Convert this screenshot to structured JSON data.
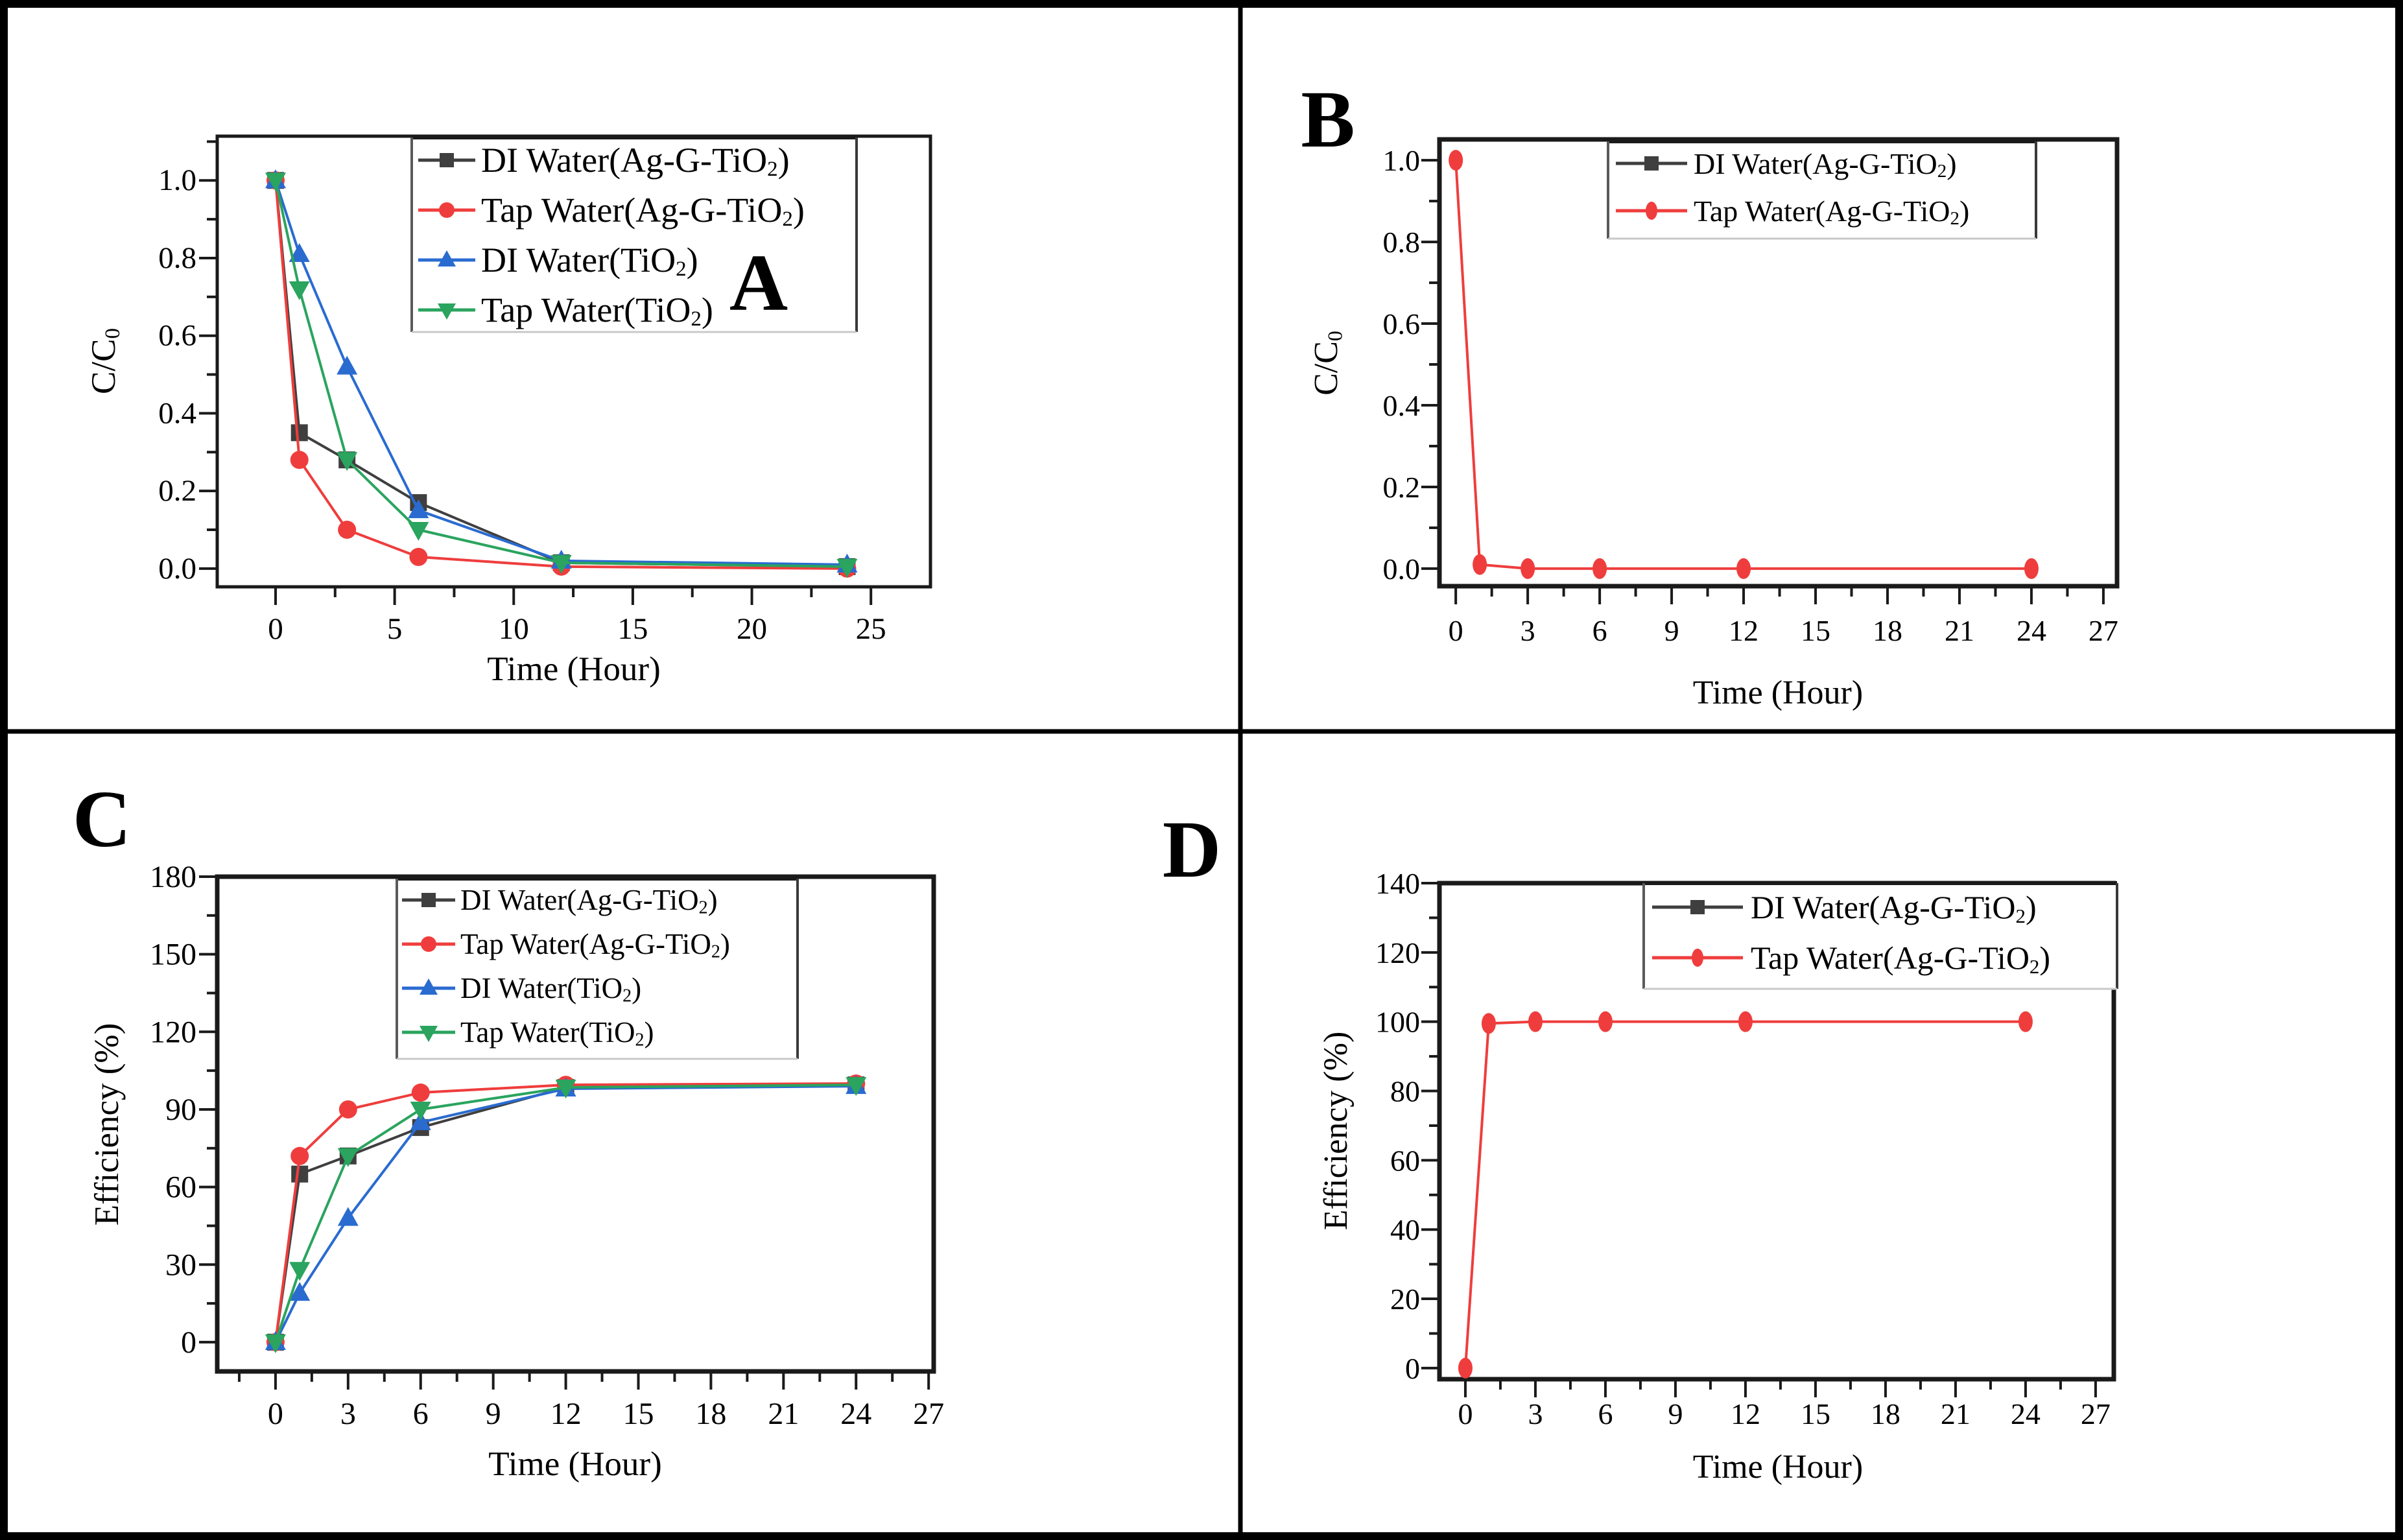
{
  "figure": {
    "background": "#ffffff",
    "outer_border_color": "#000000",
    "divider_color": "#000000",
    "legend_border_color": "#777777",
    "legend_bottom_border_color": "#c8c8c8",
    "axis_color": "#1a1a1a",
    "panel_letters": [
      "A",
      "B",
      "C",
      "D"
    ]
  },
  "chart_data": [
    {
      "panel": "A",
      "panel_letter": "A",
      "type": "line",
      "title": "",
      "xlabel": "Time (Hour)",
      "ylabel": "C/C0",
      "grid": false,
      "x_range": [
        -2.45,
        27.5
      ],
      "y_range": [
        -0.047,
        1.114
      ],
      "x_ticks": [
        0,
        5,
        10,
        15,
        20,
        25
      ],
      "x_tick_labels": [
        "0",
        "5",
        "10",
        "15",
        "20",
        "25"
      ],
      "y_ticks": [
        0.0,
        0.2,
        0.4,
        0.6,
        0.8,
        1.0
      ],
      "y_tick_labels": [
        "0.0",
        "0.2",
        "0.4",
        "0.6",
        "0.8",
        "1.0"
      ],
      "x": [
        0,
        1,
        3,
        6,
        12,
        24
      ],
      "series": [
        {
          "name": "DI Water(Ag-G-TiO2)",
          "color": "#3f3f3f",
          "marker": "square",
          "values": [
            1.0,
            0.35,
            0.28,
            0.17,
            0.015,
            0.005
          ]
        },
        {
          "name": "Tap Water(Ag-G-TiO2)",
          "color": "#ef3d3d",
          "marker": "circle",
          "values": [
            1.0,
            0.28,
            0.1,
            0.03,
            0.005,
            0.0
          ]
        },
        {
          "name": "DI Water(TiO2)",
          "color": "#2a6bd0",
          "marker": "triangle-up",
          "values": [
            1.0,
            0.81,
            0.52,
            0.15,
            0.02,
            0.01
          ]
        },
        {
          "name": "Tap Water(TiO2)",
          "color": "#2aa45e",
          "marker": "triangle-down",
          "values": [
            1.0,
            0.72,
            0.28,
            0.1,
            0.015,
            0.005
          ]
        }
      ],
      "legend": {
        "position": "top-right",
        "entries": [
          {
            "label": "DI Water(Ag-G-TiO2)",
            "color": "#3f3f3f",
            "marker": "square"
          },
          {
            "label": "Tap Water(Ag-G-TiO2)",
            "color": "#ef3d3d",
            "marker": "circle"
          },
          {
            "label": "DI Water(TiO2)",
            "color": "#2a6bd0",
            "marker": "triangle-up"
          },
          {
            "label": "Tap Water(TiO2)",
            "color": "#2aa45e",
            "marker": "triangle-down"
          }
        ]
      }
    },
    {
      "panel": "B",
      "panel_letter": "B",
      "type": "line",
      "title": "",
      "xlabel": "Time (Hour)",
      "ylabel": "C/C0",
      "grid": false,
      "x_range": [
        -0.68,
        27.57
      ],
      "y_range": [
        -0.043,
        1.051
      ],
      "x_ticks": [
        0,
        3,
        6,
        9,
        12,
        15,
        18,
        21,
        24,
        27
      ],
      "x_tick_labels": [
        "0",
        "3",
        "6",
        "9",
        "12",
        "15",
        "18",
        "21",
        "24",
        "27"
      ],
      "y_ticks": [
        0.0,
        0.2,
        0.4,
        0.6,
        0.8,
        1.0
      ],
      "y_tick_labels": [
        "0.0",
        "0.2",
        "0.4",
        "0.6",
        "0.8",
        "1.0"
      ],
      "x": [
        0,
        1,
        3,
        6,
        12,
        24
      ],
      "series": [
        {
          "name": "Tap Water(Ag-G-TiO2)",
          "color": "#ef3d3d",
          "marker": "ellipse-v",
          "values": [
            1.0,
            0.01,
            0.0,
            0.0,
            0.0,
            0.0
          ]
        }
      ],
      "legend": {
        "position": "top-right",
        "entries": [
          {
            "label": "DI Water(Ag-G-TiO2)",
            "color": "#3f3f3f",
            "marker": "square"
          },
          {
            "label": "Tap Water(Ag-G-TiO2)",
            "color": "#ef3d3d",
            "marker": "ellipse-v"
          }
        ]
      }
    },
    {
      "panel": "C",
      "panel_letter": "C",
      "type": "line",
      "title": "",
      "xlabel": "Time (Hour)",
      "ylabel": "Efficiency (%)",
      "grid": false,
      "x_range": [
        -2.41,
        27.21
      ],
      "y_range": [
        -11.3,
        180
      ],
      "x_ticks": [
        0,
        3,
        6,
        9,
        12,
        15,
        18,
        21,
        24,
        27
      ],
      "x_tick_labels": [
        "0",
        "3",
        "6",
        "9",
        "12",
        "15",
        "18",
        "21",
        "24",
        "27"
      ],
      "y_ticks": [
        0,
        30,
        60,
        90,
        120,
        150,
        180
      ],
      "y_tick_labels": [
        "0",
        "30",
        "60",
        "90",
        "120",
        "150",
        "180"
      ],
      "x": [
        0,
        1,
        3,
        6,
        12,
        24
      ],
      "series": [
        {
          "name": "DI Water(Ag-G-TiO2)",
          "color": "#3f3f3f",
          "marker": "square",
          "values": [
            0,
            65,
            72,
            83,
            98.5,
            99.5
          ]
        },
        {
          "name": "Tap Water(Ag-G-TiO2)",
          "color": "#ef3d3d",
          "marker": "circle",
          "values": [
            0,
            72,
            90,
            96.5,
            99.5,
            100
          ]
        },
        {
          "name": "DI Water(TiO2)",
          "color": "#2a6bd0",
          "marker": "triangle-up",
          "values": [
            0,
            19,
            48,
            85,
            98,
            99
          ]
        },
        {
          "name": "Tap Water(TiO2)",
          "color": "#2aa45e",
          "marker": "triangle-down",
          "values": [
            0,
            28,
            72,
            90,
            98.5,
            99.5
          ]
        }
      ],
      "legend": {
        "position": "top-right",
        "entries": [
          {
            "label": "DI Water(Ag-G-TiO2)",
            "color": "#3f3f3f",
            "marker": "square"
          },
          {
            "label": "Tap Water(Ag-G-TiO2)",
            "color": "#ef3d3d",
            "marker": "circle"
          },
          {
            "label": "DI Water(TiO2)",
            "color": "#2a6bd0",
            "marker": "triangle-up"
          },
          {
            "label": "Tap Water(TiO2)",
            "color": "#2aa45e",
            "marker": "triangle-down"
          }
        ]
      }
    },
    {
      "panel": "D",
      "panel_letter": "D",
      "type": "line",
      "title": "",
      "xlabel": "Time (Hour)",
      "ylabel": "Efficiency (%)",
      "grid": false,
      "x_range": [
        -1.11,
        27.78
      ],
      "y_range": [
        -3.2,
        140
      ],
      "x_ticks": [
        0,
        3,
        6,
        9,
        12,
        15,
        18,
        21,
        24,
        27
      ],
      "x_tick_labels": [
        "0",
        "3",
        "6",
        "9",
        "12",
        "15",
        "18",
        "21",
        "24",
        "27"
      ],
      "y_ticks": [
        0,
        20,
        40,
        60,
        80,
        100,
        120,
        140
      ],
      "y_tick_labels": [
        "0",
        "20",
        "40",
        "60",
        "80",
        "100",
        "120",
        "140"
      ],
      "x": [
        0,
        1,
        3,
        6,
        12,
        24
      ],
      "series": [
        {
          "name": "Tap Water(Ag-G-TiO2)",
          "color": "#ef3d3d",
          "marker": "ellipse-v",
          "values": [
            0,
            99.5,
            100,
            100,
            100,
            100
          ]
        }
      ],
      "legend": {
        "position": "top-right",
        "entries": [
          {
            "label": "DI Water(Ag-G-TiO2)",
            "color": "#3f3f3f",
            "marker": "square"
          },
          {
            "label": "Tap Water(Ag-G-TiO2)",
            "color": "#ef3d3d",
            "marker": "ellipse-v"
          }
        ]
      }
    }
  ]
}
